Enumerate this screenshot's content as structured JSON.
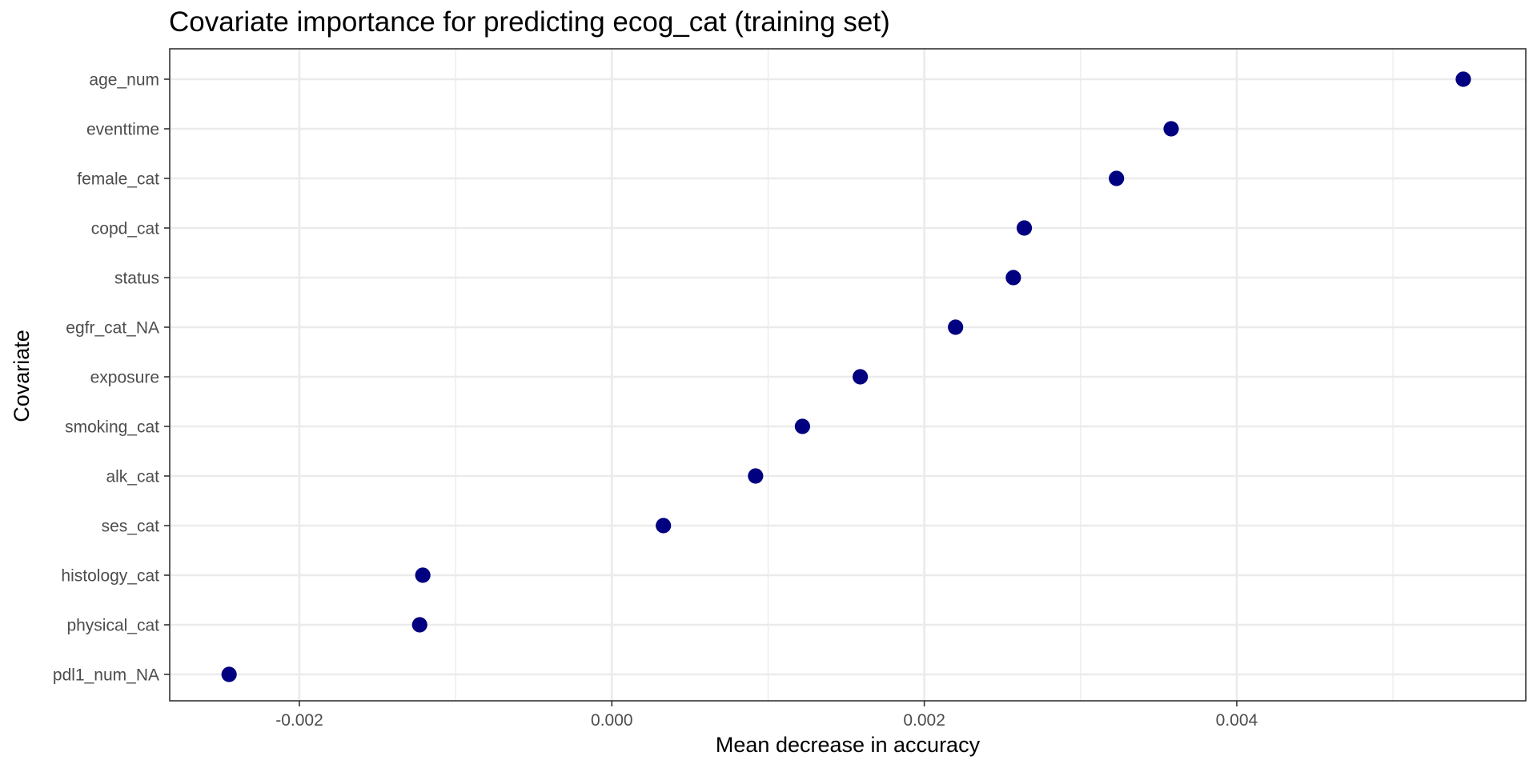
{
  "chart_data": {
    "type": "scatter",
    "title": "Covariate importance for predicting ecog_cat (training set)",
    "xlabel": "Mean decrease in accuracy",
    "ylabel": "Covariate",
    "categories": [
      "age_num",
      "eventtime",
      "female_cat",
      "copd_cat",
      "status",
      "egfr_cat_NA",
      "exposure",
      "smoking_cat",
      "alk_cat",
      "ses_cat",
      "histology_cat",
      "physical_cat",
      "pdl1_num_NA"
    ],
    "values": [
      0.00545,
      0.00358,
      0.00323,
      0.00264,
      0.00257,
      0.0022,
      0.00159,
      0.00122,
      0.00092,
      0.00033,
      -0.00121,
      -0.00123,
      -0.00245
    ],
    "xlim": [
      -0.00283,
      0.00585
    ],
    "x_major_ticks": [
      -0.002,
      0.0,
      0.002,
      0.004
    ],
    "x_minor_ticks": [
      -0.001,
      0.001,
      0.003,
      0.005
    ],
    "x_tick_labels": [
      "-0.002",
      "0.000",
      "0.002",
      "0.004"
    ],
    "point_color": "#000080",
    "grid": true,
    "legend": "none"
  }
}
